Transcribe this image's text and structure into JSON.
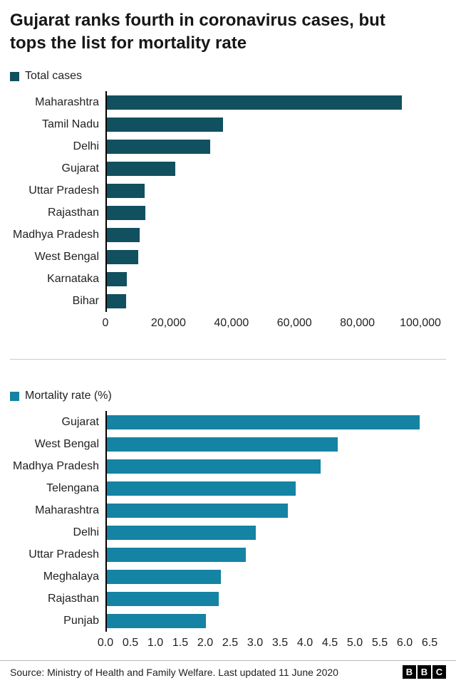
{
  "headline": "Gujarat ranks fourth in coronavirus cases, but tops the list for mortality rate",
  "chart_data": [
    {
      "type": "bar",
      "orientation": "horizontal",
      "legend": "Total cases",
      "color": "#11505f",
      "categories": [
        "Maharashtra",
        "Tamil Nadu",
        "Delhi",
        "Gujarat",
        "Uttar Pradesh",
        "Rajasthan",
        "Madhya Pradesh",
        "West Bengal",
        "Karnataka",
        "Bihar"
      ],
      "values": [
        94000,
        37000,
        33000,
        21800,
        12000,
        12200,
        10500,
        10000,
        6300,
        6100
      ],
      "xlim": [
        0,
        100000
      ],
      "xticks": [
        "0",
        "20,000",
        "40,000",
        "60,000",
        "80,000",
        "100,000"
      ],
      "grid": false,
      "legend_position": "top-left"
    },
    {
      "type": "bar",
      "orientation": "horizontal",
      "legend": "Mortality rate (%)",
      "color": "#1583a3",
      "categories": [
        "Gujarat",
        "West Bengal",
        "Madhya Pradesh",
        "Telengana",
        "Maharashtra",
        "Delhi",
        "Uttar Pradesh",
        "Meghalaya",
        "Rajasthan",
        "Punjab"
      ],
      "values": [
        6.3,
        4.65,
        4.3,
        3.8,
        3.65,
        3.0,
        2.8,
        2.3,
        2.25,
        2.0
      ],
      "xlim": [
        0,
        6.5
      ],
      "xticks": [
        "0.0",
        "0.5",
        "1.0",
        "1.5",
        "2.0",
        "2.5",
        "3.0",
        "3.5",
        "4.0",
        "4.5",
        "5.0",
        "5.5",
        "6.0",
        "6.5"
      ],
      "grid": false,
      "legend_position": "top-left"
    }
  ],
  "footer": {
    "source": "Source: Ministry of Health and Family Welfare. Last updated 11 June 2020",
    "logo": [
      "B",
      "B",
      "C"
    ]
  }
}
